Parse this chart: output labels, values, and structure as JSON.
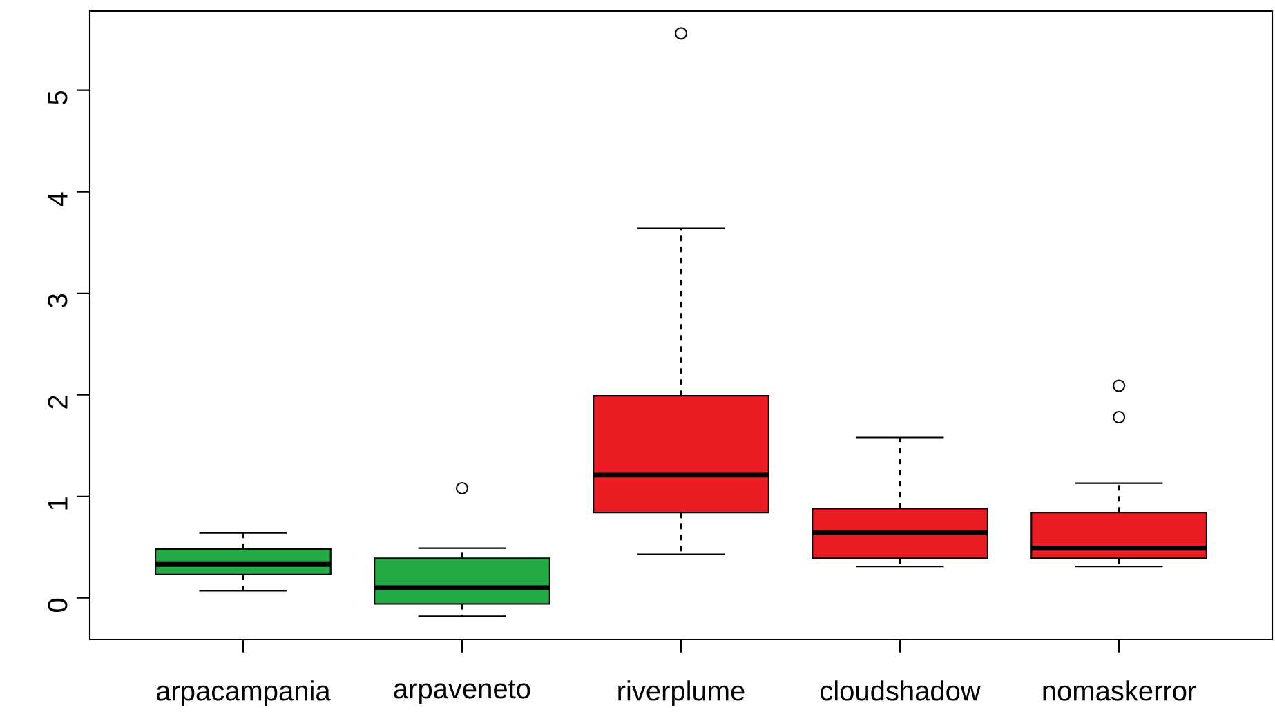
{
  "chart_data": {
    "type": "box",
    "categories": [
      "arpacampania",
      "arpaveneto",
      "riverplume",
      "cloudshadow",
      "nomaskerror"
    ],
    "colors": [
      "#22ab45",
      "#22ab45",
      "#ec1c24",
      "#ec1c24",
      "#ec1c24"
    ],
    "boxes": [
      {
        "low": 0.07,
        "q1": 0.23,
        "median": 0.33,
        "q3": 0.48,
        "high": 0.64
      },
      {
        "low": -0.18,
        "q1": -0.06,
        "median": 0.1,
        "q3": 0.39,
        "high": 0.49,
        "outliers": [
          1.08
        ]
      },
      {
        "low": 0.43,
        "q1": 0.84,
        "median": 1.21,
        "q3": 1.99,
        "high": 3.64,
        "outliers": [
          5.56
        ]
      },
      {
        "low": 0.31,
        "q1": 0.39,
        "median": 0.64,
        "q3": 0.88,
        "high": 1.58
      },
      {
        "low": 0.31,
        "q1": 0.39,
        "median": 0.49,
        "q3": 0.84,
        "high": 1.13,
        "outliers": [
          2.09,
          1.78
        ]
      }
    ],
    "ylim": [
      -0.41,
      5.78
    ],
    "yticks": [
      0,
      1,
      2,
      3,
      4,
      5
    ]
  }
}
